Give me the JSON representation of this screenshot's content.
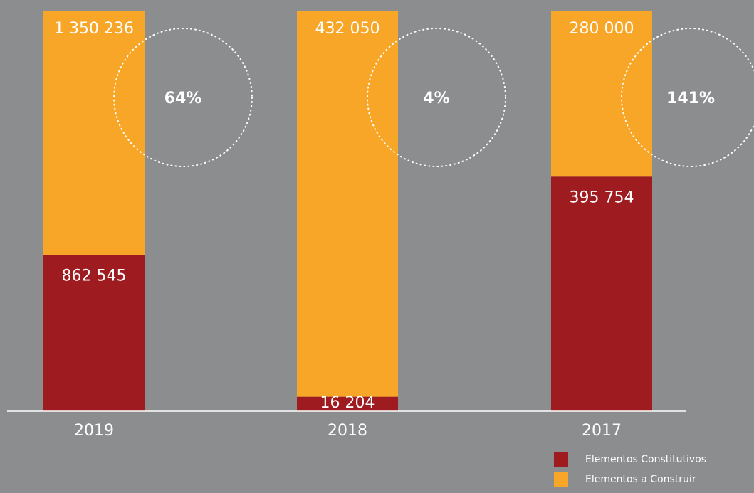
{
  "chart_data": {
    "type": "bar",
    "stacking": "percent",
    "categories": [
      "2019",
      "2018",
      "2017"
    ],
    "series": [
      {
        "name": "Elementos Constitutivos",
        "color": "#9e1b20",
        "values": [
          862545,
          16204,
          395754
        ],
        "value_labels": [
          "862 545",
          "16 204",
          "395 754"
        ]
      },
      {
        "name": "Elementos a Construir",
        "color": "#f8a628",
        "values": [
          1350236,
          432050,
          280000
        ],
        "value_labels": [
          "1 350 236",
          "432 050",
          "280 000"
        ]
      }
    ],
    "annotations": [
      {
        "value": 64,
        "label": "64%"
      },
      {
        "value": 4,
        "label": "4%"
      },
      {
        "value": 141,
        "label": "141%"
      }
    ]
  }
}
